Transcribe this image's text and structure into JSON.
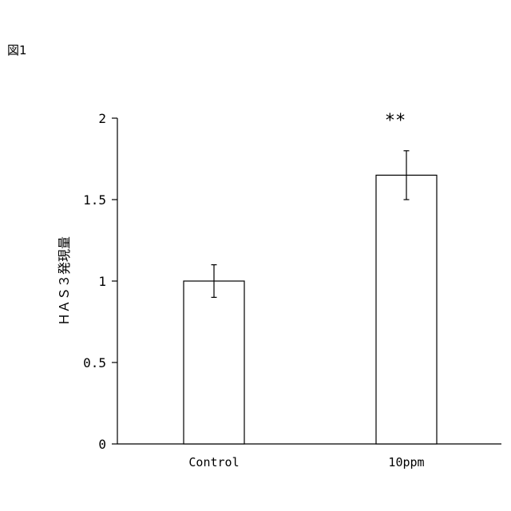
{
  "figure_label": "図1",
  "chart_data": {
    "type": "bar",
    "categories": [
      "Control",
      "10ppm"
    ],
    "values": [
      1.0,
      1.65
    ],
    "error": [
      0.1,
      0.15
    ],
    "annotations": [
      "",
      "**"
    ],
    "ylabel": "ＨＡＳ３発現量",
    "xlabel": "",
    "ylim": [
      0,
      2
    ],
    "yticks": [
      0,
      0.5,
      1,
      1.5,
      2
    ],
    "ytick_labels": [
      "0",
      "0.5",
      "1",
      "1.5",
      "2"
    ],
    "grid": false,
    "bar_fill": "#ffffff",
    "bar_stroke": "#000000"
  }
}
